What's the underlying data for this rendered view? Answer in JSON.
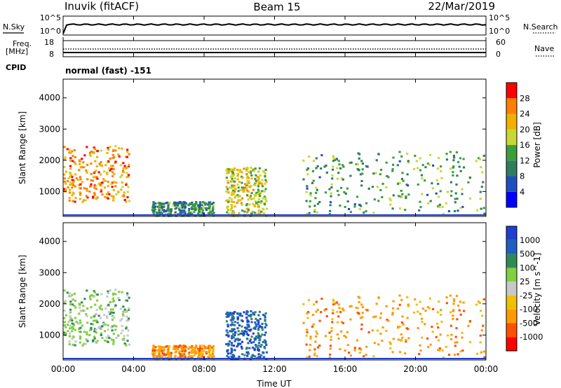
{
  "header": {
    "station": "Inuvik (fitACF)",
    "beam": "Beam 15",
    "date": "22/Mar/2019"
  },
  "nsky_panel": {
    "left_label": "N.Sky",
    "left_ticks": [
      "10^5",
      "10^0"
    ],
    "right_ticks": [
      "10^5",
      "10^0"
    ],
    "right_label": "N.Search"
  },
  "freq_panel": {
    "left_label_line1": "Freq.",
    "left_label_line2": "[MHz]",
    "left_ticks": [
      "18",
      "8"
    ],
    "right_ticks": [
      "60",
      "0"
    ],
    "right_label": "Nave"
  },
  "cpid": {
    "label": "CPID",
    "value": "normal (fast) -151"
  },
  "xaxis": {
    "label": "Time UT",
    "ticks": [
      "00:00",
      "04:00",
      "08:00",
      "12:00",
      "16:00",
      "20:00",
      "00:00"
    ]
  },
  "colors": {
    "power_scale": [
      "#0000ff",
      "#1f4fbf",
      "#2e7d5f",
      "#3a9e3a",
      "#c8d830",
      "#f0b000",
      "#ff7f00",
      "#ff0000"
    ],
    "velocity_scale": [
      "#ff0000",
      "#ff4f00",
      "#ff9a00",
      "#f0c000",
      "#c8c8c8",
      "#80d040",
      "#2e8b57",
      "#1f5fbf",
      "#1f3fd0"
    ]
  },
  "chart_data": [
    {
      "type": "heatmap",
      "title": "",
      "xlabel": "Time UT",
      "ylabel": "Slant Range [km]",
      "ylim": [
        200,
        4600
      ],
      "yticks": [
        1000,
        2000,
        3000,
        4000
      ],
      "colorbar_label": "Power [dB]",
      "colorbar_ticks": [
        "4",
        "8",
        "12",
        "16",
        "20",
        "24",
        "28"
      ],
      "colorbar_range": [
        0,
        30
      ],
      "regions": [
        {
          "t_start": 0.0,
          "t_end": 3.7,
          "r_low": 700,
          "r_high": 2500,
          "value_db": 24
        },
        {
          "t_start": 5.0,
          "t_end": 8.5,
          "r_low": 250,
          "r_high": 700,
          "value_db": 10
        },
        {
          "t_start": 9.2,
          "t_end": 11.5,
          "r_low": 250,
          "r_high": 1800,
          "value_db": 18
        },
        {
          "t_start": 13.5,
          "t_end": 24.0,
          "r_low": 300,
          "r_high": 2300,
          "value_db": 12
        }
      ]
    },
    {
      "type": "heatmap",
      "title": "",
      "xlabel": "Time UT",
      "ylabel": "Slant Range [km]",
      "ylim": [
        200,
        4600
      ],
      "yticks": [
        1000,
        2000,
        3000,
        4000
      ],
      "colorbar_label": "Velocity [m s^-1]",
      "colorbar_ticks": [
        "1000",
        "500",
        "100",
        "25",
        "-25",
        "-100",
        "-500",
        "-1000"
      ],
      "colorbar_range": [
        -1000,
        1000
      ],
      "regions": [
        {
          "t_start": 0.0,
          "t_end": 3.7,
          "r_low": 700,
          "r_high": 2500,
          "value_ms": 100
        },
        {
          "t_start": 5.0,
          "t_end": 8.5,
          "r_low": 250,
          "r_high": 700,
          "value_ms": -100
        },
        {
          "t_start": 9.2,
          "t_end": 11.5,
          "r_low": 250,
          "r_high": 1800,
          "value_ms": 500
        },
        {
          "t_start": 13.5,
          "t_end": 24.0,
          "r_low": 300,
          "r_high": 2300,
          "value_ms": -100
        }
      ]
    }
  ]
}
